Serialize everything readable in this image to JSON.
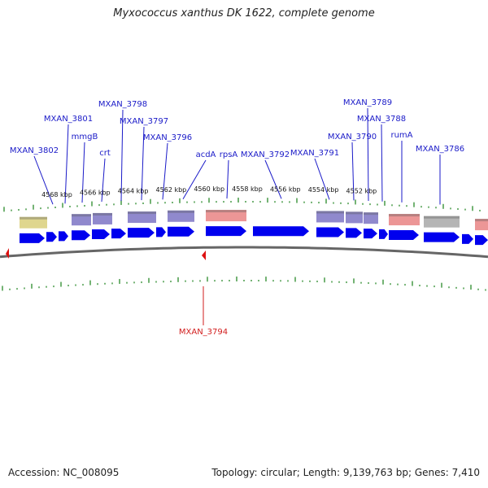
{
  "header": {
    "title": "Myxococcus xanthus DK 1622, complete genome"
  },
  "footer": {
    "accession": "Accession: NC_008095",
    "summary": "Topology: circular; Length: 9,139,763 bp; Genes: 7,410"
  },
  "colors": {
    "gene_label": "#1a1ac8",
    "highlight_label": "#d21e1e",
    "tick": "#2a8a2a",
    "forward_gene": "#0000ee",
    "feature_yellow": "#d9cf7a",
    "feature_purple": "#7c74c4",
    "feature_pink": "#e98484",
    "feature_gray": "#a8a8a8",
    "backbone": "#666666",
    "marker": "#dd1111"
  },
  "scale": {
    "unit": "kbp",
    "labels": [
      {
        "kbp": 4568,
        "text": "4568 kbp"
      },
      {
        "kbp": 4566,
        "text": "4566 kbp"
      },
      {
        "kbp": 4564,
        "text": "4564 kbp"
      },
      {
        "kbp": 4562,
        "text": "4562 kbp"
      },
      {
        "kbp": 4560,
        "text": "4560 kbp"
      },
      {
        "kbp": 4558,
        "text": "4558 kbp"
      },
      {
        "kbp": 4556,
        "text": "4556 kbp"
      },
      {
        "kbp": 4554,
        "text": "4554 kbp"
      },
      {
        "kbp": 4552,
        "text": "4552 kbp"
      }
    ]
  },
  "gene_labels": [
    {
      "text": "MXAN_3802"
    },
    {
      "text": "MXAN_3801"
    },
    {
      "text": "mmgB"
    },
    {
      "text": "crt"
    },
    {
      "text": "MXAN_3798"
    },
    {
      "text": "MXAN_3797"
    },
    {
      "text": "MXAN_3796"
    },
    {
      "text": "acdA"
    },
    {
      "text": "rpsA"
    },
    {
      "text": "MXAN_3792"
    },
    {
      "text": "MXAN_3791"
    },
    {
      "text": "MXAN_3790"
    },
    {
      "text": "MXAN_3789"
    },
    {
      "text": "MXAN_3788"
    },
    {
      "text": "rumA"
    },
    {
      "text": "MXAN_3786"
    }
  ],
  "highlight_gene": {
    "text": "MXAN_3794"
  }
}
